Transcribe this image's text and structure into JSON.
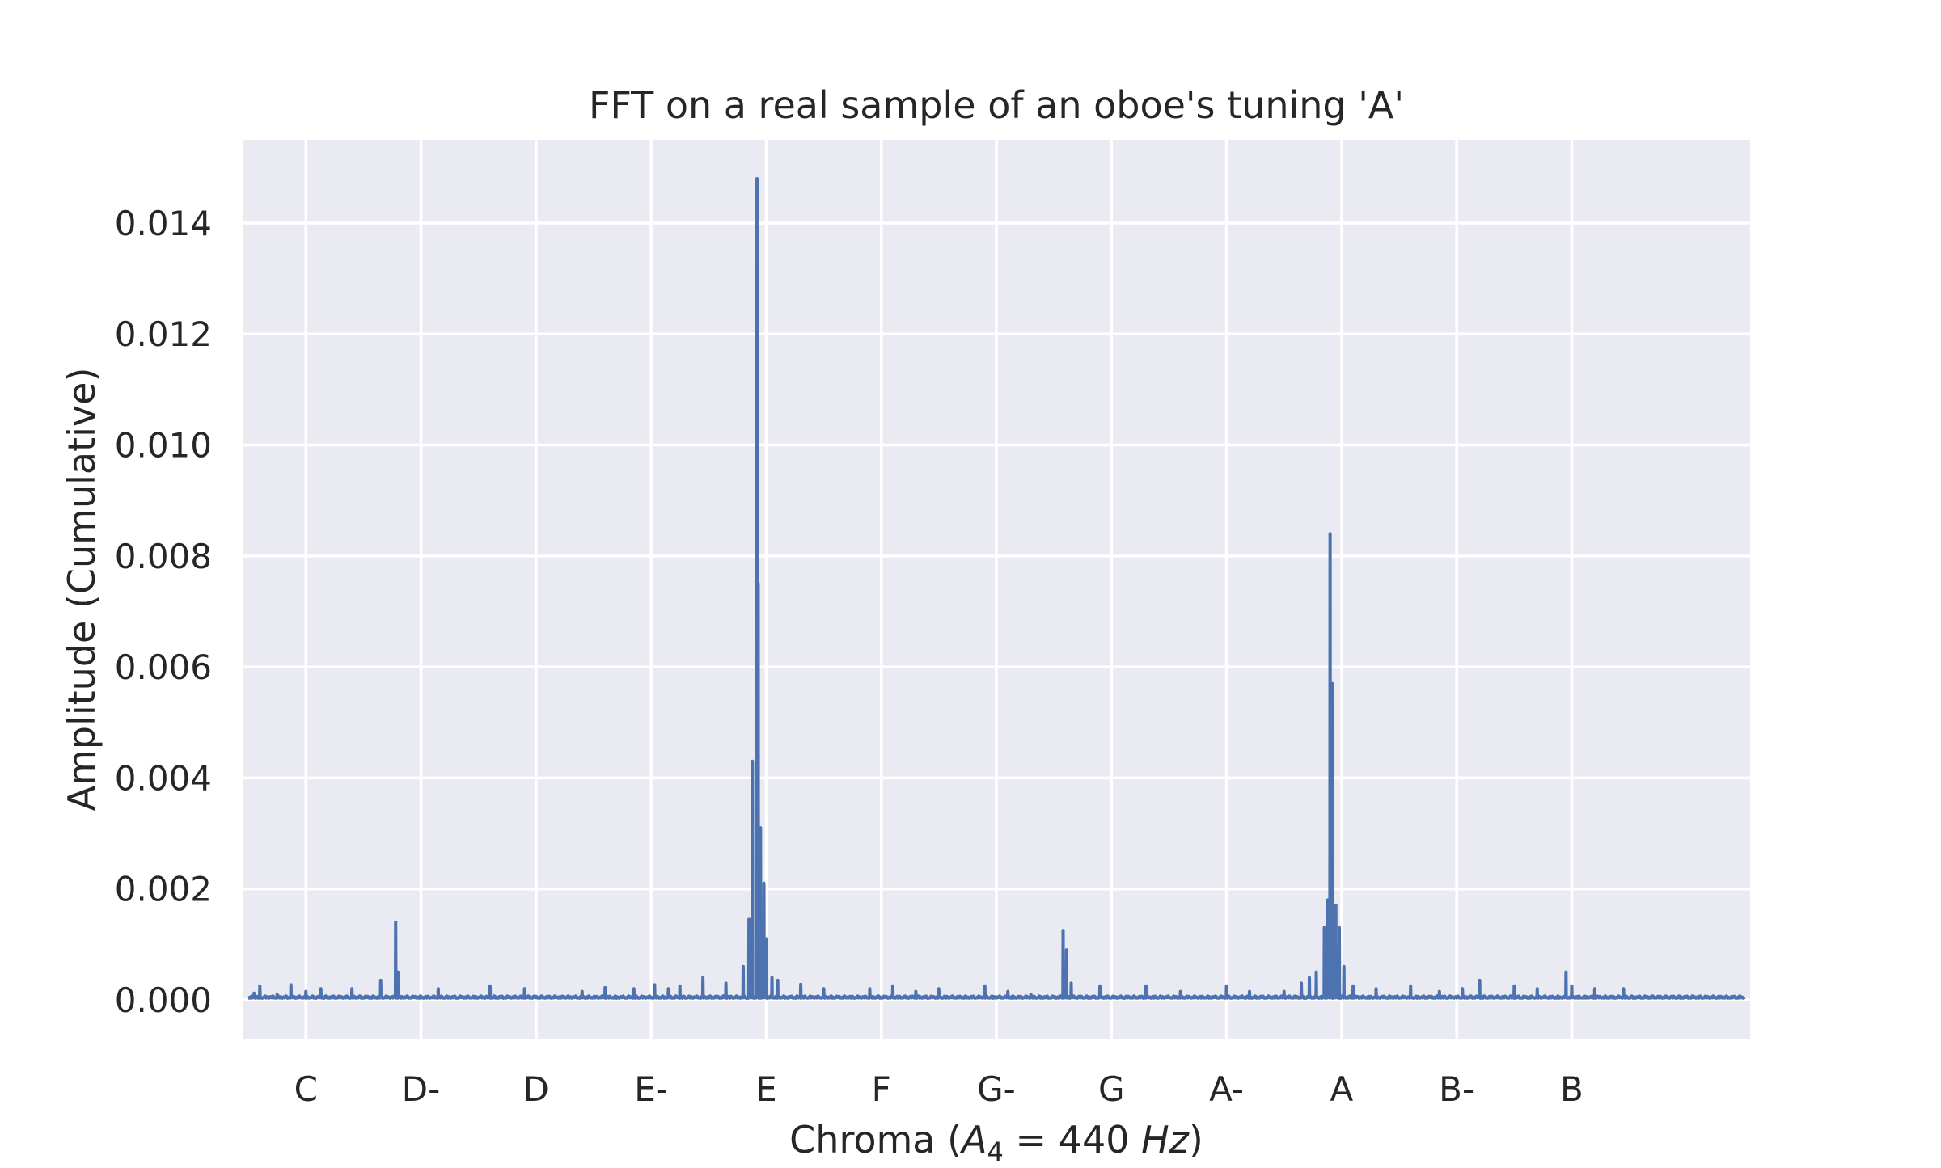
{
  "chart_data": {
    "type": "line",
    "title": "FFT on a real sample of an oboe's tuning 'A'",
    "xlabel": {
      "prefix": "Chroma (",
      "var": "A",
      "sub": "4",
      "mid": " = 440 ",
      "unit": "Hz",
      "suffix": ")"
    },
    "ylabel": "Amplitude (Cumulative)",
    "xlim": [
      -0.55,
      12.55
    ],
    "ylim": [
      -0.0007,
      0.0155
    ],
    "x_tick_positions": [
      0,
      1,
      2,
      3,
      4,
      5,
      6,
      7,
      8,
      9,
      10,
      11
    ],
    "x_tick_labels": [
      "C",
      "D-",
      "D",
      "E-",
      "E",
      "F",
      "G-",
      "G",
      "A-",
      "A",
      "B-",
      "B"
    ],
    "y_ticks": [
      0.0,
      0.002,
      0.004,
      0.006,
      0.008,
      0.01,
      0.012,
      0.014
    ],
    "y_tick_labels": [
      "0.000",
      "0.002",
      "0.004",
      "0.006",
      "0.008",
      "0.010",
      "0.012",
      "0.014"
    ],
    "grid": true,
    "colors": {
      "background": "#EAEAF2",
      "grid": "#FFFFFF",
      "series": "#4C72B0"
    },
    "series": [
      {
        "x_range": [
          -0.5,
          12.5
        ],
        "baseline": 5e-05,
        "peaks": [
          {
            "x": -0.45,
            "y": 0.00012
          },
          {
            "x": -0.4,
            "y": 0.00025
          },
          {
            "x": -0.25,
            "y": 0.0001
          },
          {
            "x": -0.13,
            "y": 0.00027
          },
          {
            "x": 0.0,
            "y": 0.00015
          },
          {
            "x": 0.13,
            "y": 0.0002
          },
          {
            "x": 0.4,
            "y": 0.0002
          },
          {
            "x": 0.65,
            "y": 0.00035
          },
          {
            "x": 0.78,
            "y": 0.0014
          },
          {
            "x": 0.8,
            "y": 0.0005
          },
          {
            "x": 1.15,
            "y": 0.0002
          },
          {
            "x": 1.6,
            "y": 0.00025
          },
          {
            "x": 1.9,
            "y": 0.0002
          },
          {
            "x": 2.4,
            "y": 0.00015
          },
          {
            "x": 2.6,
            "y": 0.00022
          },
          {
            "x": 2.85,
            "y": 0.0002
          },
          {
            "x": 3.03,
            "y": 0.00027
          },
          {
            "x": 3.15,
            "y": 0.0002
          },
          {
            "x": 3.25,
            "y": 0.00025
          },
          {
            "x": 3.45,
            "y": 0.0004
          },
          {
            "x": 3.65,
            "y": 0.0003
          },
          {
            "x": 3.8,
            "y": 0.0006
          },
          {
            "x": 3.85,
            "y": 0.00145
          },
          {
            "x": 3.88,
            "y": 0.0043
          },
          {
            "x": 3.92,
            "y": 0.0148
          },
          {
            "x": 3.93,
            "y": 0.0075
          },
          {
            "x": 3.95,
            "y": 0.0031
          },
          {
            "x": 3.98,
            "y": 0.0021
          },
          {
            "x": 4.0,
            "y": 0.0011
          },
          {
            "x": 4.05,
            "y": 0.0004
          },
          {
            "x": 4.1,
            "y": 0.00035
          },
          {
            "x": 4.3,
            "y": 0.00028
          },
          {
            "x": 4.5,
            "y": 0.0002
          },
          {
            "x": 4.9,
            "y": 0.0002
          },
          {
            "x": 5.1,
            "y": 0.00025
          },
          {
            "x": 5.3,
            "y": 0.00015
          },
          {
            "x": 5.5,
            "y": 0.0002
          },
          {
            "x": 5.9,
            "y": 0.00025
          },
          {
            "x": 6.1,
            "y": 0.00015
          },
          {
            "x": 6.3,
            "y": 0.0001
          },
          {
            "x": 6.58,
            "y": 0.00125
          },
          {
            "x": 6.61,
            "y": 0.0009
          },
          {
            "x": 6.65,
            "y": 0.0003
          },
          {
            "x": 6.9,
            "y": 0.00025
          },
          {
            "x": 7.3,
            "y": 0.00025
          },
          {
            "x": 7.6,
            "y": 0.00015
          },
          {
            "x": 8.0,
            "y": 0.00025
          },
          {
            "x": 8.2,
            "y": 0.00015
          },
          {
            "x": 8.5,
            "y": 0.00015
          },
          {
            "x": 8.65,
            "y": 0.0003
          },
          {
            "x": 8.72,
            "y": 0.0004
          },
          {
            "x": 8.78,
            "y": 0.0005
          },
          {
            "x": 8.85,
            "y": 0.0013
          },
          {
            "x": 8.88,
            "y": 0.0018
          },
          {
            "x": 8.9,
            "y": 0.0084
          },
          {
            "x": 8.92,
            "y": 0.0057
          },
          {
            "x": 8.95,
            "y": 0.0017
          },
          {
            "x": 8.98,
            "y": 0.0013
          },
          {
            "x": 9.02,
            "y": 0.0006
          },
          {
            "x": 9.1,
            "y": 0.00025
          },
          {
            "x": 9.3,
            "y": 0.0002
          },
          {
            "x": 9.6,
            "y": 0.00025
          },
          {
            "x": 9.85,
            "y": 0.00015
          },
          {
            "x": 10.05,
            "y": 0.0002
          },
          {
            "x": 10.2,
            "y": 0.00035
          },
          {
            "x": 10.5,
            "y": 0.00025
          },
          {
            "x": 10.7,
            "y": 0.0002
          },
          {
            "x": 10.95,
            "y": 0.0005
          },
          {
            "x": 11.0,
            "y": 0.00025
          },
          {
            "x": 11.2,
            "y": 0.0002
          },
          {
            "x": 11.45,
            "y": 0.0002
          }
        ]
      }
    ]
  }
}
